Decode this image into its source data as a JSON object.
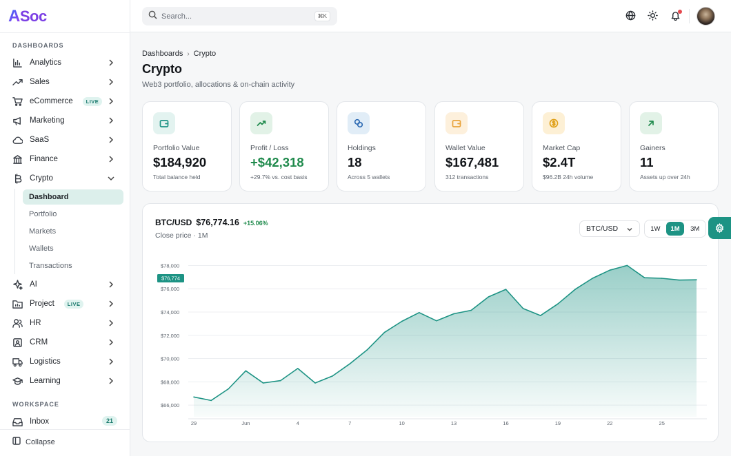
{
  "brand": {
    "name_a": "A",
    "name_rest": "Soc"
  },
  "search": {
    "placeholder": "Search...",
    "shortcut": "⌘K"
  },
  "sidebar": {
    "section_dashboards": "DASHBOARDS",
    "section_workspace": "WORKSPACE",
    "items": [
      {
        "label": "Analytics",
        "icon": "bar-chart-icon"
      },
      {
        "label": "Sales",
        "icon": "trend-up-icon"
      },
      {
        "label": "eCommerce",
        "icon": "cart-icon",
        "badge": "LIVE"
      },
      {
        "label": "Marketing",
        "icon": "megaphone-icon"
      },
      {
        "label": "SaaS",
        "icon": "cloud-icon"
      },
      {
        "label": "Finance",
        "icon": "bank-icon"
      },
      {
        "label": "Crypto",
        "icon": "bitcoin-icon",
        "expanded": true
      },
      {
        "label": "AI",
        "icon": "sparkle-icon"
      },
      {
        "label": "Project",
        "icon": "folder-icon",
        "badge": "LIVE"
      },
      {
        "label": "HR",
        "icon": "users-icon"
      },
      {
        "label": "CRM",
        "icon": "contact-icon"
      },
      {
        "label": "Logistics",
        "icon": "truck-icon"
      },
      {
        "label": "Learning",
        "icon": "graduation-cap-icon"
      }
    ],
    "crypto_sub": [
      "Dashboard",
      "Portfolio",
      "Markets",
      "Wallets",
      "Transactions"
    ],
    "inbox": {
      "label": "Inbox",
      "count": "21"
    },
    "collapse_label": "Collapse"
  },
  "breadcrumb": {
    "root": "Dashboards",
    "current": "Crypto"
  },
  "page": {
    "title": "Crypto",
    "subtitle": "Web3 portfolio, allocations & on-chain activity"
  },
  "cards": [
    {
      "label": "Portfolio Value",
      "value": "$184,920",
      "sub": "Total balance held",
      "icon": "wallet-icon",
      "color": "#1d9384",
      "bg": "#e3f3f0"
    },
    {
      "label": "Profit / Loss",
      "value": "+$42,318",
      "sub": "+29.7% vs. cost basis",
      "icon": "trend-up-icon",
      "color": "#1f8a4c",
      "bg": "#e2f2e7"
    },
    {
      "label": "Holdings",
      "value": "18",
      "sub": "Across 5 wallets",
      "icon": "coins-icon",
      "color": "#2f6cb4",
      "bg": "#e1edf7"
    },
    {
      "label": "Wallet Value",
      "value": "$167,481",
      "sub": "312 transactions",
      "icon": "wallet-icon",
      "color": "#e8a23a",
      "bg": "#fdf0dc"
    },
    {
      "label": "Market Cap",
      "value": "$2.4T",
      "sub": "$96.2B 24h volume",
      "icon": "dollar-coin-icon",
      "color": "#e0a11b",
      "bg": "#fdf0d5"
    },
    {
      "label": "Gainers",
      "value": "11",
      "sub": "Assets up over 24h",
      "icon": "arrow-up-right-icon",
      "color": "#1f8a4c",
      "bg": "#e2f2e7"
    }
  ],
  "chart_panel": {
    "pair": "BTC/USD",
    "price": "$76,774.16",
    "change": "+15.06%",
    "subtitle": "Close price · 1M",
    "select_value": "BTC/USD",
    "ranges": [
      "1W",
      "1M",
      "3M"
    ],
    "active_range": "1M",
    "last_label": "$76,774"
  },
  "colors": {
    "accent": "#1d9384",
    "positive": "#1f8a4c"
  },
  "chart_data": {
    "type": "area",
    "title": "",
    "ylim": [
      65000,
      78500
    ],
    "yticks": [
      66000,
      68000,
      70000,
      72000,
      74000,
      76000,
      78000
    ],
    "ytick_labels": [
      "$66,000",
      "$68,000",
      "$70,000",
      "$72,000",
      "$74,000",
      "$76,000",
      "$78,000"
    ],
    "xtick_labels": [
      "29",
      "Jun",
      "4",
      "7",
      "10",
      "13",
      "16",
      "19",
      "22",
      "25"
    ],
    "xtick_index": [
      0,
      3,
      6,
      9,
      12,
      15,
      18,
      21,
      24,
      27
    ],
    "values": [
      66700,
      66400,
      67400,
      68950,
      67900,
      68100,
      69150,
      67900,
      68500,
      69550,
      70750,
      72250,
      73200,
      73950,
      73250,
      73850,
      74150,
      75300,
      75950,
      74300,
      73700,
      74700,
      75950,
      76900,
      77600,
      78000,
      76950,
      76900,
      76750,
      76774
    ]
  }
}
